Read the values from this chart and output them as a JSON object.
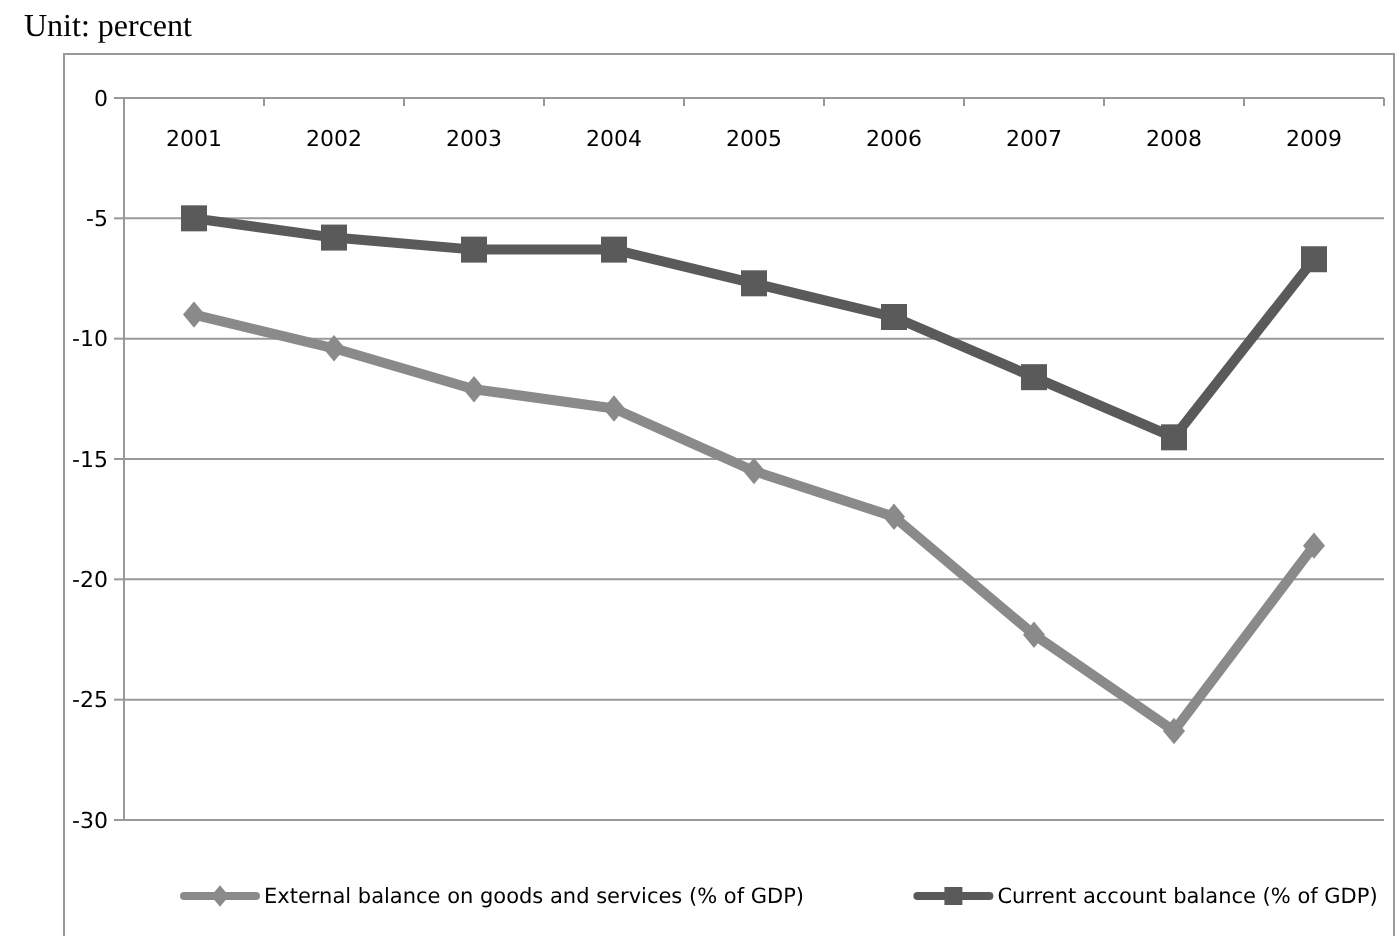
{
  "chart_data": {
    "type": "line",
    "title": "Unit: percent",
    "categories": [
      "2001",
      "2002",
      "2003",
      "2004",
      "2005",
      "2006",
      "2007",
      "2008",
      "2009"
    ],
    "series": [
      {
        "name": "External balance on goods and services (% of GDP)",
        "color": "#8a8a8a",
        "marker": "diamond",
        "values": [
          -9.0,
          -10.4,
          -12.1,
          -12.9,
          -15.5,
          -17.4,
          -22.3,
          -26.3,
          -18.6
        ]
      },
      {
        "name": "Current account balance (% of GDP)",
        "color": "#5a5a5a",
        "marker": "square",
        "values": [
          -5.0,
          -5.8,
          -6.3,
          -6.3,
          -7.7,
          -9.1,
          -11.6,
          -14.1,
          -6.7
        ]
      }
    ],
    "ylim": [
      -30,
      0
    ],
    "yticks": [
      -30,
      -25,
      -20,
      -15,
      -10,
      -5,
      0
    ],
    "grid": "y",
    "legend": "bottom"
  }
}
